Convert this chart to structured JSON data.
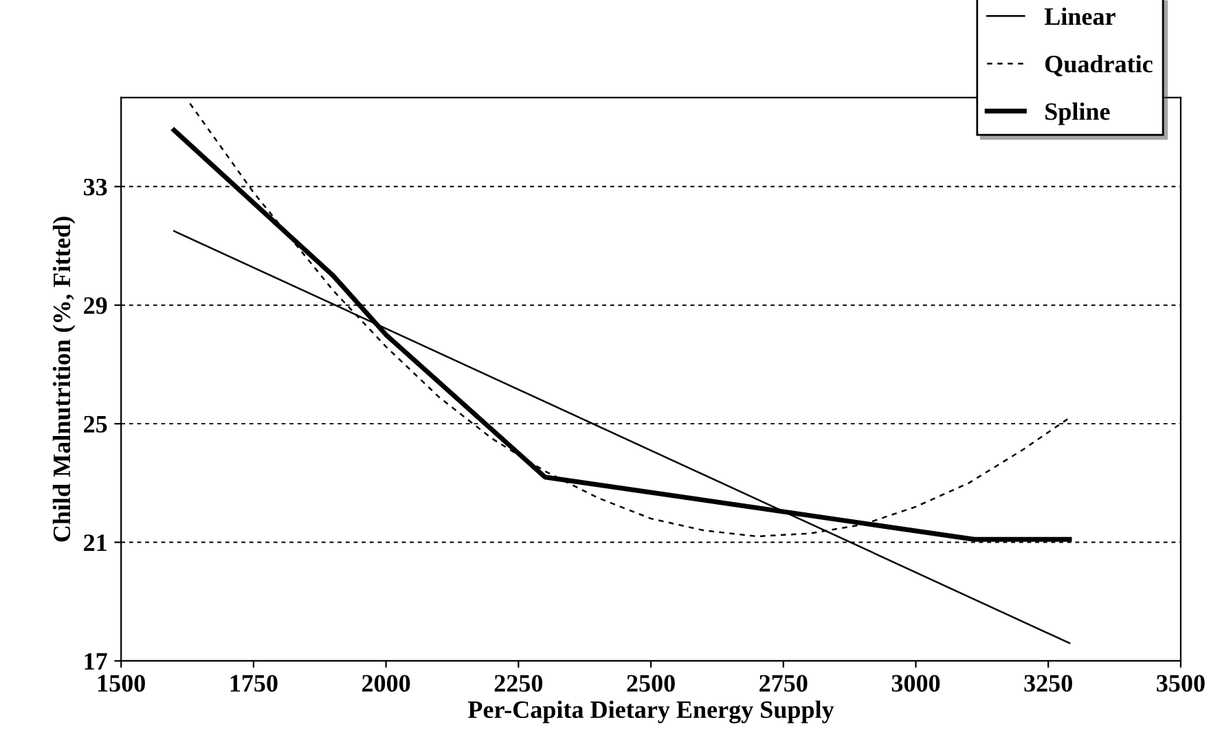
{
  "chart_data": {
    "type": "line",
    "xlabel": "Per-Capita Dietary Energy Supply",
    "ylabel": "Child Malnutrition (%, Fitted)",
    "xlim": [
      1500,
      3500
    ],
    "xticks": [
      1500,
      1750,
      2000,
      2250,
      2500,
      2750,
      3000,
      3250,
      3500
    ],
    "ylim": [
      17,
      36
    ],
    "yticks": [
      17,
      21,
      25,
      29,
      33
    ],
    "grid": "y",
    "legend": "top right",
    "marker": "none",
    "series": [
      {
        "name": "Linear",
        "color": "#000000",
        "line_style": "solid",
        "x": [
          1600,
          3290
        ],
        "values": [
          31.5,
          17.6
        ]
      },
      {
        "name": "Quadratic",
        "color": "#000000",
        "line_style": "dashed",
        "x": [
          1630,
          1750,
          1900,
          2000,
          2100,
          2200,
          2300,
          2400,
          2500,
          2600,
          2700,
          2800,
          2900,
          3000,
          3100,
          3200,
          3290
        ],
        "values": [
          35.8,
          32.8,
          29.5,
          27.6,
          25.9,
          24.5,
          23.4,
          22.5,
          21.8,
          21.4,
          21.2,
          21.3,
          21.6,
          22.2,
          23.0,
          24.1,
          25.2
        ]
      },
      {
        "name": "Spline",
        "color": "#000000",
        "line_style": "solid",
        "x": [
          1600,
          1900,
          2000,
          2300,
          3110,
          3290
        ],
        "values": [
          34.9,
          30.0,
          28.0,
          23.2,
          21.1,
          21.1
        ]
      }
    ]
  }
}
